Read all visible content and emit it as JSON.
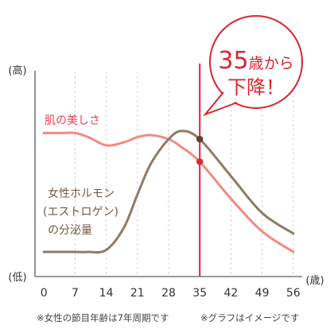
{
  "chart_data": {
    "type": "line",
    "xlim": [
      -2,
      58
    ],
    "ylim": [
      0,
      100
    ],
    "x_ticks": [
      0,
      7,
      14,
      21,
      28,
      35,
      42,
      49,
      56
    ],
    "x_unit_label": "(歳)",
    "y_labels": {
      "high": "(高)",
      "low": "(低)"
    },
    "grid": true,
    "series": [
      {
        "name": "肌の美しさ",
        "color": "#f28b80",
        "label_color": "#e8414c",
        "marker_color": "#e3283a",
        "x": [
          0,
          4,
          7,
          10,
          14,
          18,
          21,
          24,
          28,
          31,
          35,
          42,
          49,
          56
        ],
        "y": [
          70,
          70,
          70,
          68,
          64,
          65.5,
          68,
          69,
          67,
          63,
          56,
          38,
          22,
          12
        ]
      },
      {
        "name_lines": [
          "女性ホルモン",
          "(エストロゲン)",
          "の分泌量"
        ],
        "color": "#8d7c68",
        "label_color": "#6f5b45",
        "marker_color": "#5c4227",
        "x": [
          0,
          4,
          7,
          10,
          14,
          18,
          21,
          24,
          28,
          31,
          35,
          42,
          49,
          56
        ],
        "y": [
          12,
          12,
          12,
          12,
          13,
          24,
          40,
          55,
          67,
          71,
          67,
          49,
          31,
          21
        ]
      }
    ],
    "highlight": {
      "x": 35,
      "color": "#d9252f"
    },
    "callout": {
      "age": "35",
      "line1_suffix": "歳から",
      "line2": "下降！",
      "color": "#d9252f"
    }
  },
  "footnotes": [
    "※女性の節目年齢は7年周期です",
    "※グラフはイメージです"
  ]
}
